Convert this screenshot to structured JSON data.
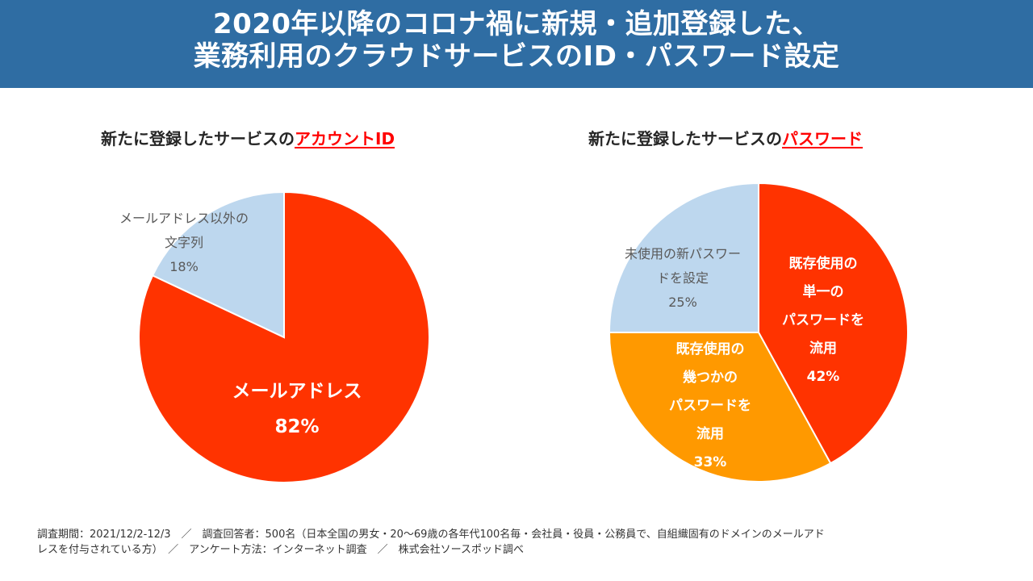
{
  "header": {
    "title_line1": "2020年以降のコロナ禍に新規・追加登録した、",
    "title_line2": "業務利用のクラウドサービスのID・パスワード設定"
  },
  "left_subtitle": {
    "prefix": "新たに登録したサービスの",
    "highlight": "アカウントID"
  },
  "right_subtitle": {
    "prefix": "新たに登録したサービスの",
    "highlight": "パスワード"
  },
  "colors": {
    "header_bg": "#2f6da3",
    "red": "#ff3300",
    "orange": "#ff9900",
    "light_blue": "#bdd7ee",
    "highlight": "#ff0000"
  },
  "chart_data": [
    {
      "type": "pie",
      "slices": [
        {
          "label_lines": [
            "メールアドレス"
          ],
          "value": 82,
          "value_label": "82%",
          "color": "#ff3300"
        },
        {
          "label_lines": [
            "メールアドレス以外の",
            "文字列"
          ],
          "value": 18,
          "value_label": "18%",
          "color": "#bdd7ee"
        }
      ]
    },
    {
      "type": "pie",
      "slices": [
        {
          "label_lines": [
            "既存使用の",
            "単一の",
            "パスワードを",
            "流用"
          ],
          "value": 42,
          "value_label": "42%",
          "color": "#ff3300"
        },
        {
          "label_lines": [
            "既存使用の",
            "幾つかの",
            "パスワードを",
            "流用"
          ],
          "value": 33,
          "value_label": "33%",
          "color": "#ff9900"
        },
        {
          "label_lines": [
            "未使用の新パスワー",
            "ドを設定"
          ],
          "value": 25,
          "value_label": "25%",
          "color": "#bdd7ee"
        }
      ]
    }
  ],
  "footer": {
    "line1": "調査期間：2021/12/2-12/3　／　調査回答者：500名（日本全国の男女・20～69歳の各年代100名毎・会社員・役員・公務員で、自組織固有のドメインのメールアド",
    "line2": "レスを付与されている方）　／　アンケート方法：インターネット調査　／　株式会社ソースポッド調べ"
  }
}
